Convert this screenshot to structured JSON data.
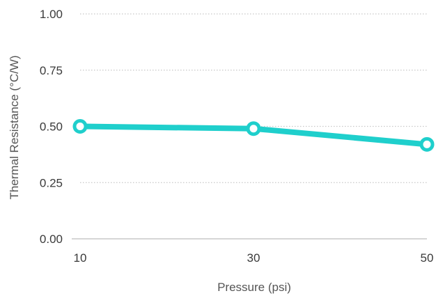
{
  "chart_data": {
    "type": "line",
    "xlabel": "Pressure (psi)",
    "ylabel": "Thermal Resistance (°C/W)",
    "x": [
      10,
      30,
      50
    ],
    "x_tick_labels": [
      "10",
      "30",
      "50"
    ],
    "ylim": [
      0,
      1
    ],
    "y_ticks": [
      0,
      0.25,
      0.5,
      0.75,
      1
    ],
    "y_tick_labels": [
      "0.00",
      "0.25",
      "0.50",
      "0.75",
      "1.00"
    ],
    "grid": true,
    "series": [
      {
        "values": [
          0.5,
          0.49,
          0.42
        ],
        "color": "#1fcfcc"
      }
    ],
    "colors": {
      "line": "#1fcfcc",
      "grid": "#c8c8c8",
      "axis": "#c8c8c8",
      "text": "#3a3a3a"
    }
  }
}
